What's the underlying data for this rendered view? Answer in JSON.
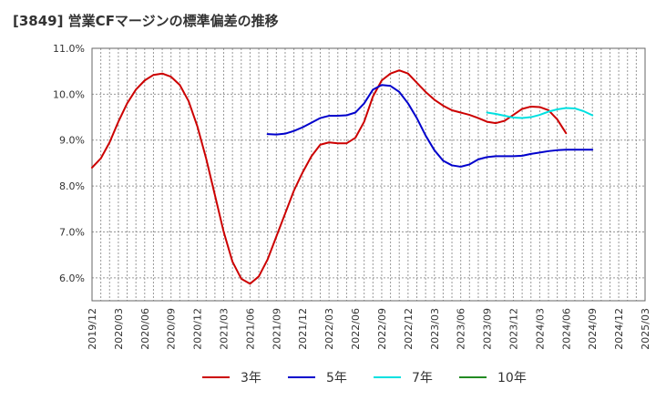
{
  "header": {
    "title": "[3849]  営業CFマージンの標準偏差の推移"
  },
  "chart_data": {
    "type": "line",
    "title": "[3849]  営業CFマージンの標準偏差の推移",
    "xlabel": "",
    "ylabel": "",
    "x_ticks": [
      "2019/12",
      "2020/03",
      "2020/06",
      "2020/09",
      "2020/12",
      "2021/03",
      "2021/06",
      "2021/09",
      "2021/12",
      "2022/03",
      "2022/06",
      "2022/09",
      "2022/12",
      "2023/03",
      "2023/06",
      "2023/09",
      "2023/12",
      "2024/03",
      "2024/06",
      "2024/09",
      "2024/12",
      "2025/03"
    ],
    "y_ticks": [
      "6.0%",
      "7.0%",
      "8.0%",
      "9.0%",
      "10.0%",
      "11.0%"
    ],
    "ylim": [
      5.5,
      11.0
    ],
    "grid": true,
    "legend_position": "bottom",
    "series": [
      {
        "name": "3年",
        "color": "#cc0000",
        "points": [
          [
            "2019/12",
            8.4
          ],
          [
            "2020/01",
            8.6
          ],
          [
            "2020/02",
            8.95
          ],
          [
            "2020/03",
            9.4
          ],
          [
            "2020/04",
            9.8
          ],
          [
            "2020/05",
            10.1
          ],
          [
            "2020/06",
            10.3
          ],
          [
            "2020/07",
            10.42
          ],
          [
            "2020/08",
            10.45
          ],
          [
            "2020/09",
            10.38
          ],
          [
            "2020/10",
            10.2
          ],
          [
            "2020/11",
            9.85
          ],
          [
            "2020/12",
            9.3
          ],
          [
            "2021/01",
            8.6
          ],
          [
            "2021/02",
            7.8
          ],
          [
            "2021/03",
            7.0
          ],
          [
            "2021/04",
            6.35
          ],
          [
            "2021/05",
            5.98
          ],
          [
            "2021/06",
            5.87
          ],
          [
            "2021/07",
            6.03
          ],
          [
            "2021/08",
            6.4
          ],
          [
            "2021/09",
            6.9
          ],
          [
            "2021/10",
            7.4
          ],
          [
            "2021/11",
            7.9
          ],
          [
            "2021/12",
            8.3
          ],
          [
            "2022/01",
            8.65
          ],
          [
            "2022/02",
            8.9
          ],
          [
            "2022/03",
            8.95
          ],
          [
            "2022/04",
            8.93
          ],
          [
            "2022/05",
            8.93
          ],
          [
            "2022/06",
            9.05
          ],
          [
            "2022/07",
            9.4
          ],
          [
            "2022/08",
            9.95
          ],
          [
            "2022/09",
            10.3
          ],
          [
            "2022/10",
            10.45
          ],
          [
            "2022/11",
            10.52
          ],
          [
            "2022/12",
            10.45
          ],
          [
            "2023/01",
            10.25
          ],
          [
            "2023/02",
            10.05
          ],
          [
            "2023/03",
            9.88
          ],
          [
            "2023/04",
            9.75
          ],
          [
            "2023/05",
            9.65
          ],
          [
            "2023/06",
            9.6
          ],
          [
            "2023/07",
            9.55
          ],
          [
            "2023/08",
            9.48
          ],
          [
            "2023/09",
            9.4
          ],
          [
            "2023/10",
            9.37
          ],
          [
            "2023/11",
            9.42
          ],
          [
            "2023/12",
            9.55
          ],
          [
            "2024/01",
            9.68
          ],
          [
            "2024/02",
            9.73
          ],
          [
            "2024/03",
            9.72
          ],
          [
            "2024/04",
            9.65
          ],
          [
            "2024/05",
            9.45
          ],
          [
            "2024/06",
            9.15
          ]
        ]
      },
      {
        "name": "5年",
        "color": "#0000cc",
        "points": [
          [
            "2021/08",
            9.13
          ],
          [
            "2021/09",
            9.12
          ],
          [
            "2021/10",
            9.14
          ],
          [
            "2021/11",
            9.2
          ],
          [
            "2021/12",
            9.28
          ],
          [
            "2022/01",
            9.38
          ],
          [
            "2022/02",
            9.48
          ],
          [
            "2022/03",
            9.53
          ],
          [
            "2022/04",
            9.53
          ],
          [
            "2022/05",
            9.54
          ],
          [
            "2022/06",
            9.6
          ],
          [
            "2022/07",
            9.8
          ],
          [
            "2022/08",
            10.1
          ],
          [
            "2022/09",
            10.2
          ],
          [
            "2022/10",
            10.18
          ],
          [
            "2022/11",
            10.05
          ],
          [
            "2022/12",
            9.8
          ],
          [
            "2023/01",
            9.48
          ],
          [
            "2023/02",
            9.1
          ],
          [
            "2023/03",
            8.78
          ],
          [
            "2023/04",
            8.55
          ],
          [
            "2023/05",
            8.45
          ],
          [
            "2023/06",
            8.42
          ],
          [
            "2023/07",
            8.47
          ],
          [
            "2023/08",
            8.58
          ],
          [
            "2023/09",
            8.63
          ],
          [
            "2023/10",
            8.65
          ],
          [
            "2023/11",
            8.65
          ],
          [
            "2023/12",
            8.65
          ],
          [
            "2024/01",
            8.66
          ],
          [
            "2024/02",
            8.7
          ],
          [
            "2024/03",
            8.73
          ],
          [
            "2024/04",
            8.76
          ],
          [
            "2024/05",
            8.78
          ],
          [
            "2024/06",
            8.79
          ],
          [
            "2024/07",
            8.79
          ],
          [
            "2024/08",
            8.79
          ],
          [
            "2024/09",
            8.79
          ]
        ]
      },
      {
        "name": "7年",
        "color": "#00e0e0",
        "points": [
          [
            "2023/09",
            9.6
          ],
          [
            "2023/10",
            9.57
          ],
          [
            "2023/11",
            9.53
          ],
          [
            "2023/12",
            9.49
          ],
          [
            "2024/01",
            9.48
          ],
          [
            "2024/02",
            9.5
          ],
          [
            "2024/03",
            9.55
          ],
          [
            "2024/04",
            9.62
          ],
          [
            "2024/05",
            9.67
          ],
          [
            "2024/06",
            9.7
          ],
          [
            "2024/07",
            9.69
          ],
          [
            "2024/08",
            9.63
          ],
          [
            "2024/09",
            9.54
          ]
        ]
      },
      {
        "name": "10年",
        "color": "#228b22",
        "points": []
      }
    ]
  }
}
